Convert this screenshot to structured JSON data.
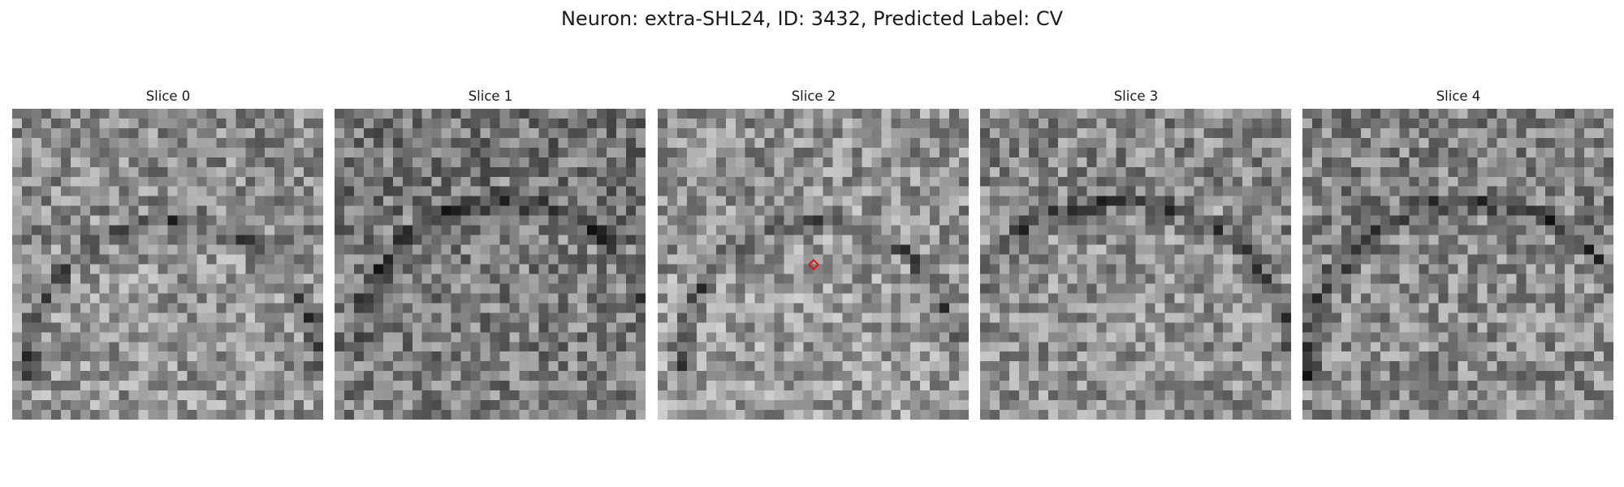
{
  "figure": {
    "title": "Neuron: extra-SHL24, ID: 3432, Predicted Label: CV"
  },
  "panels": [
    {
      "title": "Slice 0"
    },
    {
      "title": "Slice 1"
    },
    {
      "title": "Slice 2"
    },
    {
      "title": "Slice 3"
    },
    {
      "title": "Slice 4"
    }
  ],
  "colormap": "gray",
  "grid_cells": 32,
  "marker": {
    "panel": 2,
    "shape": "diamond",
    "color": "#e01010"
  }
}
